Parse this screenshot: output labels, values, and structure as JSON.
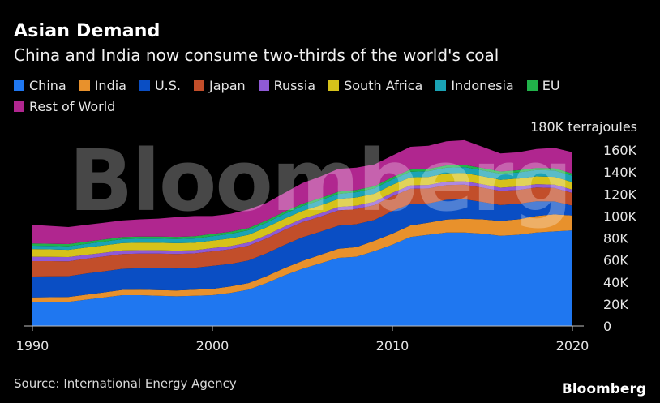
{
  "title": "Asian Demand",
  "subtitle": "China and India now consume two-thirds of the world's coal",
  "source": "Source: International Energy Agency",
  "brand": "Bloomberg",
  "watermark": "Bloomberg",
  "chart_data": {
    "type": "area",
    "stacked": true,
    "unit_label": "180K terrajoules",
    "x": [
      1990,
      1991,
      1992,
      1993,
      1994,
      1995,
      1996,
      1997,
      1998,
      1999,
      2000,
      2001,
      2002,
      2003,
      2004,
      2005,
      2006,
      2007,
      2008,
      2009,
      2010,
      2011,
      2012,
      2013,
      2014,
      2015,
      2016,
      2017,
      2018,
      2019,
      2020
    ],
    "xticks": [
      1990,
      2000,
      2010,
      2020
    ],
    "xtick_labels": [
      "1990",
      "2000",
      "2010",
      "2020"
    ],
    "ylim": [
      0,
      180000
    ],
    "yticks": [
      0,
      20000,
      40000,
      60000,
      80000,
      100000,
      120000,
      140000,
      160000
    ],
    "ytick_labels": [
      "0",
      "20K",
      "40K",
      "60K",
      "80K",
      "100K",
      "120K",
      "140K",
      "160K"
    ],
    "series": [
      {
        "name": "China",
        "color": "#1f77f0",
        "values": [
          22000,
          22000,
          22000,
          24000,
          26000,
          28000,
          28000,
          27500,
          27000,
          27500,
          28000,
          30000,
          33000,
          39000,
          46000,
          52000,
          57000,
          62000,
          63000,
          68000,
          74000,
          81000,
          83000,
          85000,
          85000,
          84000,
          82000,
          83000,
          85000,
          86000,
          87000
        ]
      },
      {
        "name": "India",
        "color": "#e8912c",
        "values": [
          4000,
          4200,
          4300,
          4500,
          4600,
          4800,
          5000,
          5200,
          5300,
          5500,
          5700,
          5900,
          6000,
          6300,
          6700,
          7200,
          7700,
          8200,
          8800,
          9500,
          10000,
          10500,
          11000,
          11800,
          12500,
          13000,
          13500,
          14000,
          15000,
          15500,
          13500
        ]
      },
      {
        "name": "U.S.",
        "color": "#0a4ec4",
        "values": [
          19000,
          19000,
          19000,
          19200,
          19200,
          19200,
          19500,
          19800,
          20000,
          20000,
          21000,
          20500,
          20500,
          20700,
          21000,
          21500,
          21000,
          21000,
          20800,
          19000,
          20500,
          19500,
          17500,
          18000,
          17800,
          15800,
          14500,
          14200,
          13400,
          11800,
          9000
        ]
      },
      {
        "name": "Japan",
        "color": "#c24e2a",
        "values": [
          14000,
          13800,
          13600,
          13500,
          13500,
          13500,
          13400,
          13400,
          13200,
          13000,
          13200,
          13400,
          13500,
          13600,
          13700,
          13800,
          13800,
          13900,
          13800,
          13500,
          13600,
          13800,
          13600,
          13400,
          13200,
          13000,
          12800,
          12600,
          12500,
          12200,
          11500
        ]
      },
      {
        "name": "Russia",
        "color": "#8f5ad6",
        "values": [
          4000,
          3900,
          3800,
          3600,
          3400,
          3200,
          3100,
          3000,
          3000,
          2900,
          2900,
          2900,
          2900,
          3000,
          3000,
          3000,
          3000,
          3100,
          3100,
          3000,
          3000,
          3100,
          3200,
          3200,
          3200,
          3100,
          3000,
          3100,
          3100,
          3100,
          3000
        ]
      },
      {
        "name": "South Africa",
        "color": "#d6c21a",
        "values": [
          7000,
          6800,
          6600,
          6600,
          6700,
          6800,
          6800,
          6800,
          6800,
          6800,
          6900,
          7000,
          7000,
          7100,
          7200,
          7200,
          7300,
          7300,
          7400,
          7300,
          7300,
          7300,
          7300,
          7400,
          7400,
          7300,
          7200,
          7200,
          7100,
          7100,
          6900
        ]
      },
      {
        "name": "Indonesia",
        "color": "#1aa3b5",
        "values": [
          3000,
          3100,
          3200,
          3300,
          3400,
          3500,
          3600,
          3700,
          3800,
          3900,
          4000,
          4100,
          4200,
          4300,
          4400,
          4500,
          4600,
          4700,
          4800,
          4900,
          5000,
          5100,
          5200,
          5300,
          5400,
          5400,
          5500,
          5600,
          5700,
          5800,
          5800
        ]
      },
      {
        "name": "EU",
        "color": "#21b34a",
        "values": [
          2000,
          2000,
          2000,
          2000,
          2000,
          2000,
          2000,
          2000,
          2000,
          2000,
          2000,
          2000,
          2000,
          2000,
          2000,
          2000,
          2000,
          2000,
          2000,
          2000,
          2000,
          2000,
          2000,
          2000,
          2000,
          2000,
          2000,
          2000,
          2000,
          2000,
          2000
        ]
      },
      {
        "name": "Rest of World",
        "color": "#b0268f",
        "values": [
          17000,
          16200,
          15500,
          15300,
          15200,
          15000,
          15600,
          16300,
          17900,
          18400,
          16300,
          16200,
          16900,
          16000,
          17000,
          18800,
          19600,
          20800,
          20300,
          19800,
          19600,
          20700,
          21200,
          21900,
          22500,
          19400,
          16500,
          16300,
          17200,
          18500,
          19300
        ]
      }
    ]
  }
}
